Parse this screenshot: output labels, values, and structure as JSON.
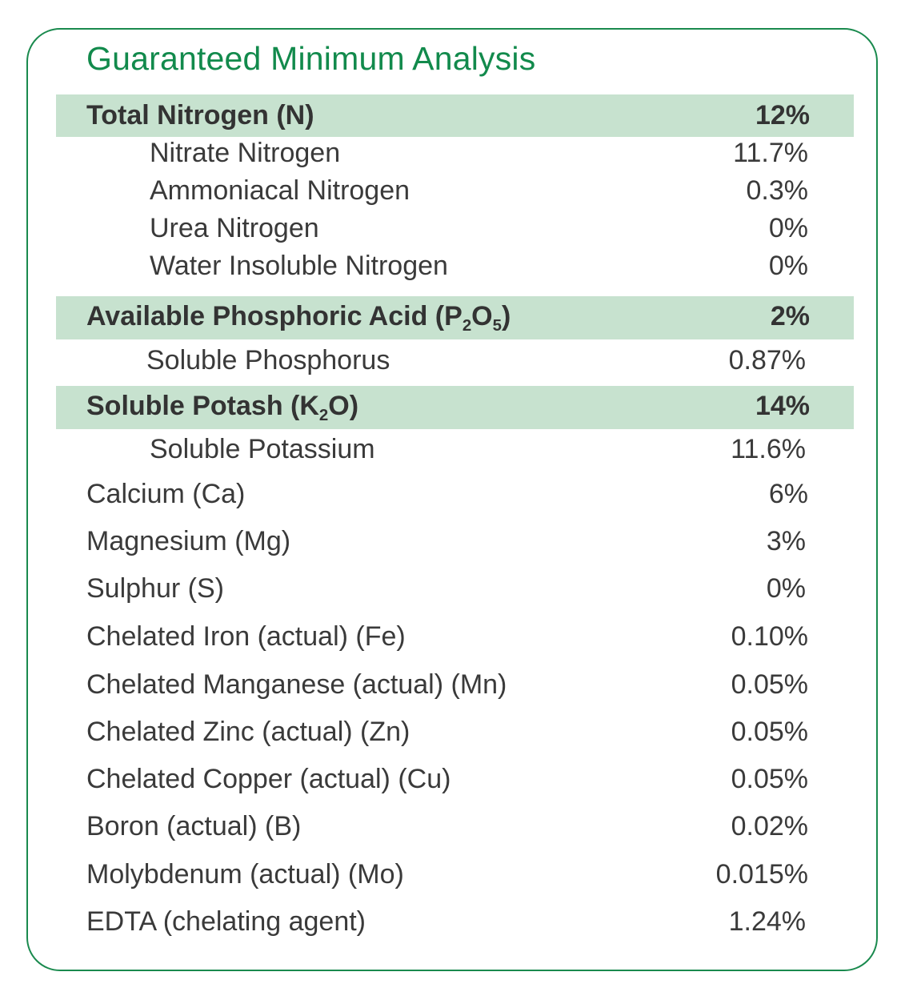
{
  "title": "Guaranteed Minimum Analysis",
  "colors": {
    "accent": "#128a4c",
    "border": "#1a8a4e",
    "header_band": "#c7e2cf",
    "text": "#3a3a3a"
  },
  "rows": [
    {
      "label": "Total Nitrogen (N)",
      "value": "12%",
      "kind": "header"
    },
    {
      "label": "Nitrate Nitrogen",
      "value": "11.7%",
      "kind": "sub"
    },
    {
      "label": "Ammoniacal Nitrogen",
      "value": "0.3%",
      "kind": "sub"
    },
    {
      "label": "Urea Nitrogen",
      "value": "0%",
      "kind": "sub"
    },
    {
      "label": "Water Insoluble Nitrogen",
      "value": "0%",
      "kind": "sub"
    },
    {
      "label_pre": "Available Phosphoric Acid (P",
      "sub1": "2",
      "label_mid": "O",
      "sub2": "5",
      "label_post": ")",
      "value": "2%",
      "kind": "header"
    },
    {
      "label": "Soluble Phosphorus",
      "value": "0.87%",
      "kind": "sub"
    },
    {
      "label_pre": "Soluble Potash (K",
      "sub1": "2",
      "label_post": "O)",
      "value": "14%",
      "kind": "header"
    },
    {
      "label": "Soluble Potassium",
      "value": "11.6%",
      "kind": "sub"
    },
    {
      "label": "Calcium (Ca)",
      "value": "6%",
      "kind": "main"
    },
    {
      "label": "Magnesium (Mg)",
      "value": "3%",
      "kind": "main"
    },
    {
      "label": "Sulphur (S)",
      "value": "0%",
      "kind": "main"
    },
    {
      "label": "Chelated Iron (actual) (Fe)",
      "value": "0.10%",
      "kind": "main"
    },
    {
      "label": "Chelated Manganese (actual) (Mn)",
      "value": "0.05%",
      "kind": "main"
    },
    {
      "label": "Chelated Zinc (actual) (Zn)",
      "value": "0.05%",
      "kind": "main"
    },
    {
      "label": "Chelated Copper (actual) (Cu)",
      "value": "0.05%",
      "kind": "main"
    },
    {
      "label": "Boron (actual) (B)",
      "value": "0.02%",
      "kind": "main"
    },
    {
      "label": "Molybdenum (actual) (Mo)",
      "value": "0.015%",
      "kind": "main"
    },
    {
      "label": "EDTA (chelating agent)",
      "value": "1.24%",
      "kind": "main"
    }
  ]
}
